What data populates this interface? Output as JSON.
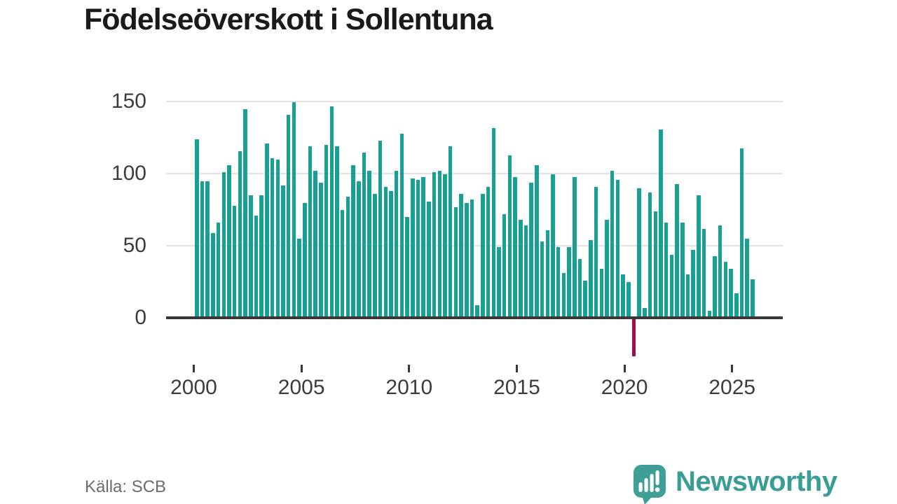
{
  "title": "Födelseöverskott i Sollentuna",
  "source": "Källa: SCB",
  "brand": {
    "name": "Newsworthy"
  },
  "colors": {
    "bar": "#18a095",
    "negative_bar": "#9e1047",
    "grid": "#e2e2e2",
    "axis": "#383838",
    "title": "#1a1a1a",
    "tick_label": "#3c3c3c",
    "source_text": "#6b6b6b",
    "brand_teal": "#3a9d95",
    "icon_teal": "#3f9e96",
    "background": "#ffffff"
  },
  "chart_data": {
    "type": "bar",
    "title": "Födelseöverskott i Sollentuna",
    "frequency": "quarterly",
    "start_period": "2000-Q1",
    "end_period": "2025-Q4",
    "values": [
      124,
      95,
      95,
      59,
      66,
      101,
      106,
      78,
      116,
      145,
      85,
      71,
      85,
      121,
      111,
      110,
      92,
      141,
      150,
      55,
      80,
      119,
      102,
      94,
      120,
      147,
      119,
      75,
      84,
      106,
      95,
      115,
      102,
      86,
      123,
      91,
      88,
      102,
      128,
      70,
      97,
      96,
      98,
      81,
      101,
      102,
      100,
      119,
      77,
      86,
      80,
      82,
      9,
      86,
      91,
      132,
      49,
      72,
      113,
      98,
      68,
      64,
      94,
      106,
      53,
      61,
      100,
      49,
      31,
      49,
      98,
      41,
      26,
      54,
      91,
      34,
      68,
      102,
      96,
      30,
      25,
      -26,
      90,
      7,
      87,
      74,
      131,
      66,
      44,
      93,
      66,
      30,
      47,
      85,
      62,
      5,
      43,
      64,
      39,
      34,
      17,
      118,
      55,
      27
    ],
    "x_ticks": [
      2000,
      2005,
      2010,
      2015,
      2020,
      2025
    ],
    "x_tick_labels": [
      "2000",
      "2005",
      "2010",
      "2015",
      "2020",
      "2025"
    ],
    "y_ticks": [
      0,
      50,
      100,
      150
    ],
    "y_tick_labels": [
      "0",
      "50",
      "100",
      "150"
    ],
    "ylim": [
      -35,
      155
    ],
    "grid": true,
    "legend": false,
    "negative_period": "2020-Q2"
  }
}
